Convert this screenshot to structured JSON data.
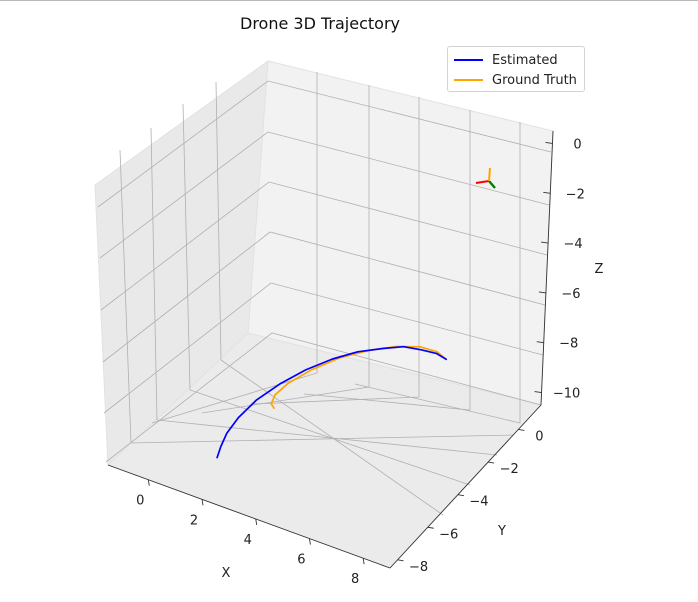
{
  "chart_data": {
    "type": "line",
    "projection": "3d",
    "title": "Drone 3D Trajectory",
    "xlabel": "X",
    "ylabel": "Y",
    "zlabel": "Z",
    "xlim": [
      -1.5,
      9
    ],
    "ylim": [
      -8.5,
      1.5
    ],
    "zlim": [
      -10.5,
      0.5
    ],
    "x_ticks": [
      0,
      2,
      4,
      6,
      8
    ],
    "y_ticks": [
      0,
      -2,
      -4,
      -6,
      -8
    ],
    "z_ticks": [
      0,
      -2,
      -4,
      -6,
      -8,
      -10
    ],
    "grid": true,
    "legend_position": "top-right",
    "series": [
      {
        "name": "Estimated",
        "color": "#0000ff",
        "points": [
          [
            6.6,
            1.25,
            -0.9
          ],
          [
            6.3,
            1.1,
            -0.7
          ],
          [
            5.8,
            0.95,
            -0.55
          ],
          [
            5.2,
            0.8,
            -0.4
          ],
          [
            4.5,
            0.6,
            -0.45
          ],
          [
            3.7,
            0.3,
            -0.6
          ],
          [
            2.9,
            0.0,
            -0.9
          ],
          [
            2.1,
            -0.4,
            -1.4
          ],
          [
            1.4,
            -0.9,
            -2.1
          ],
          [
            0.8,
            -1.4,
            -2.9
          ],
          [
            0.4,
            -1.9,
            -3.8
          ],
          [
            0.2,
            -2.3,
            -4.6
          ],
          [
            0.15,
            -2.6,
            -5.3
          ],
          [
            0.2,
            -2.9,
            -5.9
          ]
        ]
      },
      {
        "name": "Ground Truth",
        "color": "#ffa500",
        "points": [
          [
            6.6,
            1.25,
            -0.9
          ],
          [
            6.2,
            1.3,
            -0.5
          ],
          [
            5.6,
            1.2,
            -0.25
          ],
          [
            4.8,
            1.0,
            -0.2
          ],
          [
            3.9,
            0.7,
            -0.35
          ],
          [
            3.0,
            0.3,
            -0.7
          ],
          [
            2.2,
            -0.2,
            -1.3
          ],
          [
            1.6,
            -0.7,
            -2.0
          ],
          [
            1.4,
            -1.2,
            -2.7
          ],
          [
            1.5,
            -1.6,
            -3.3
          ],
          [
            1.8,
            -1.9,
            -3.7
          ]
        ]
      }
    ],
    "origin_axes": [
      {
        "axis": "x",
        "color": "#ff0000"
      },
      {
        "axis": "y",
        "color": "#008000"
      },
      {
        "axis": "z",
        "color": "#ffa500"
      }
    ]
  }
}
